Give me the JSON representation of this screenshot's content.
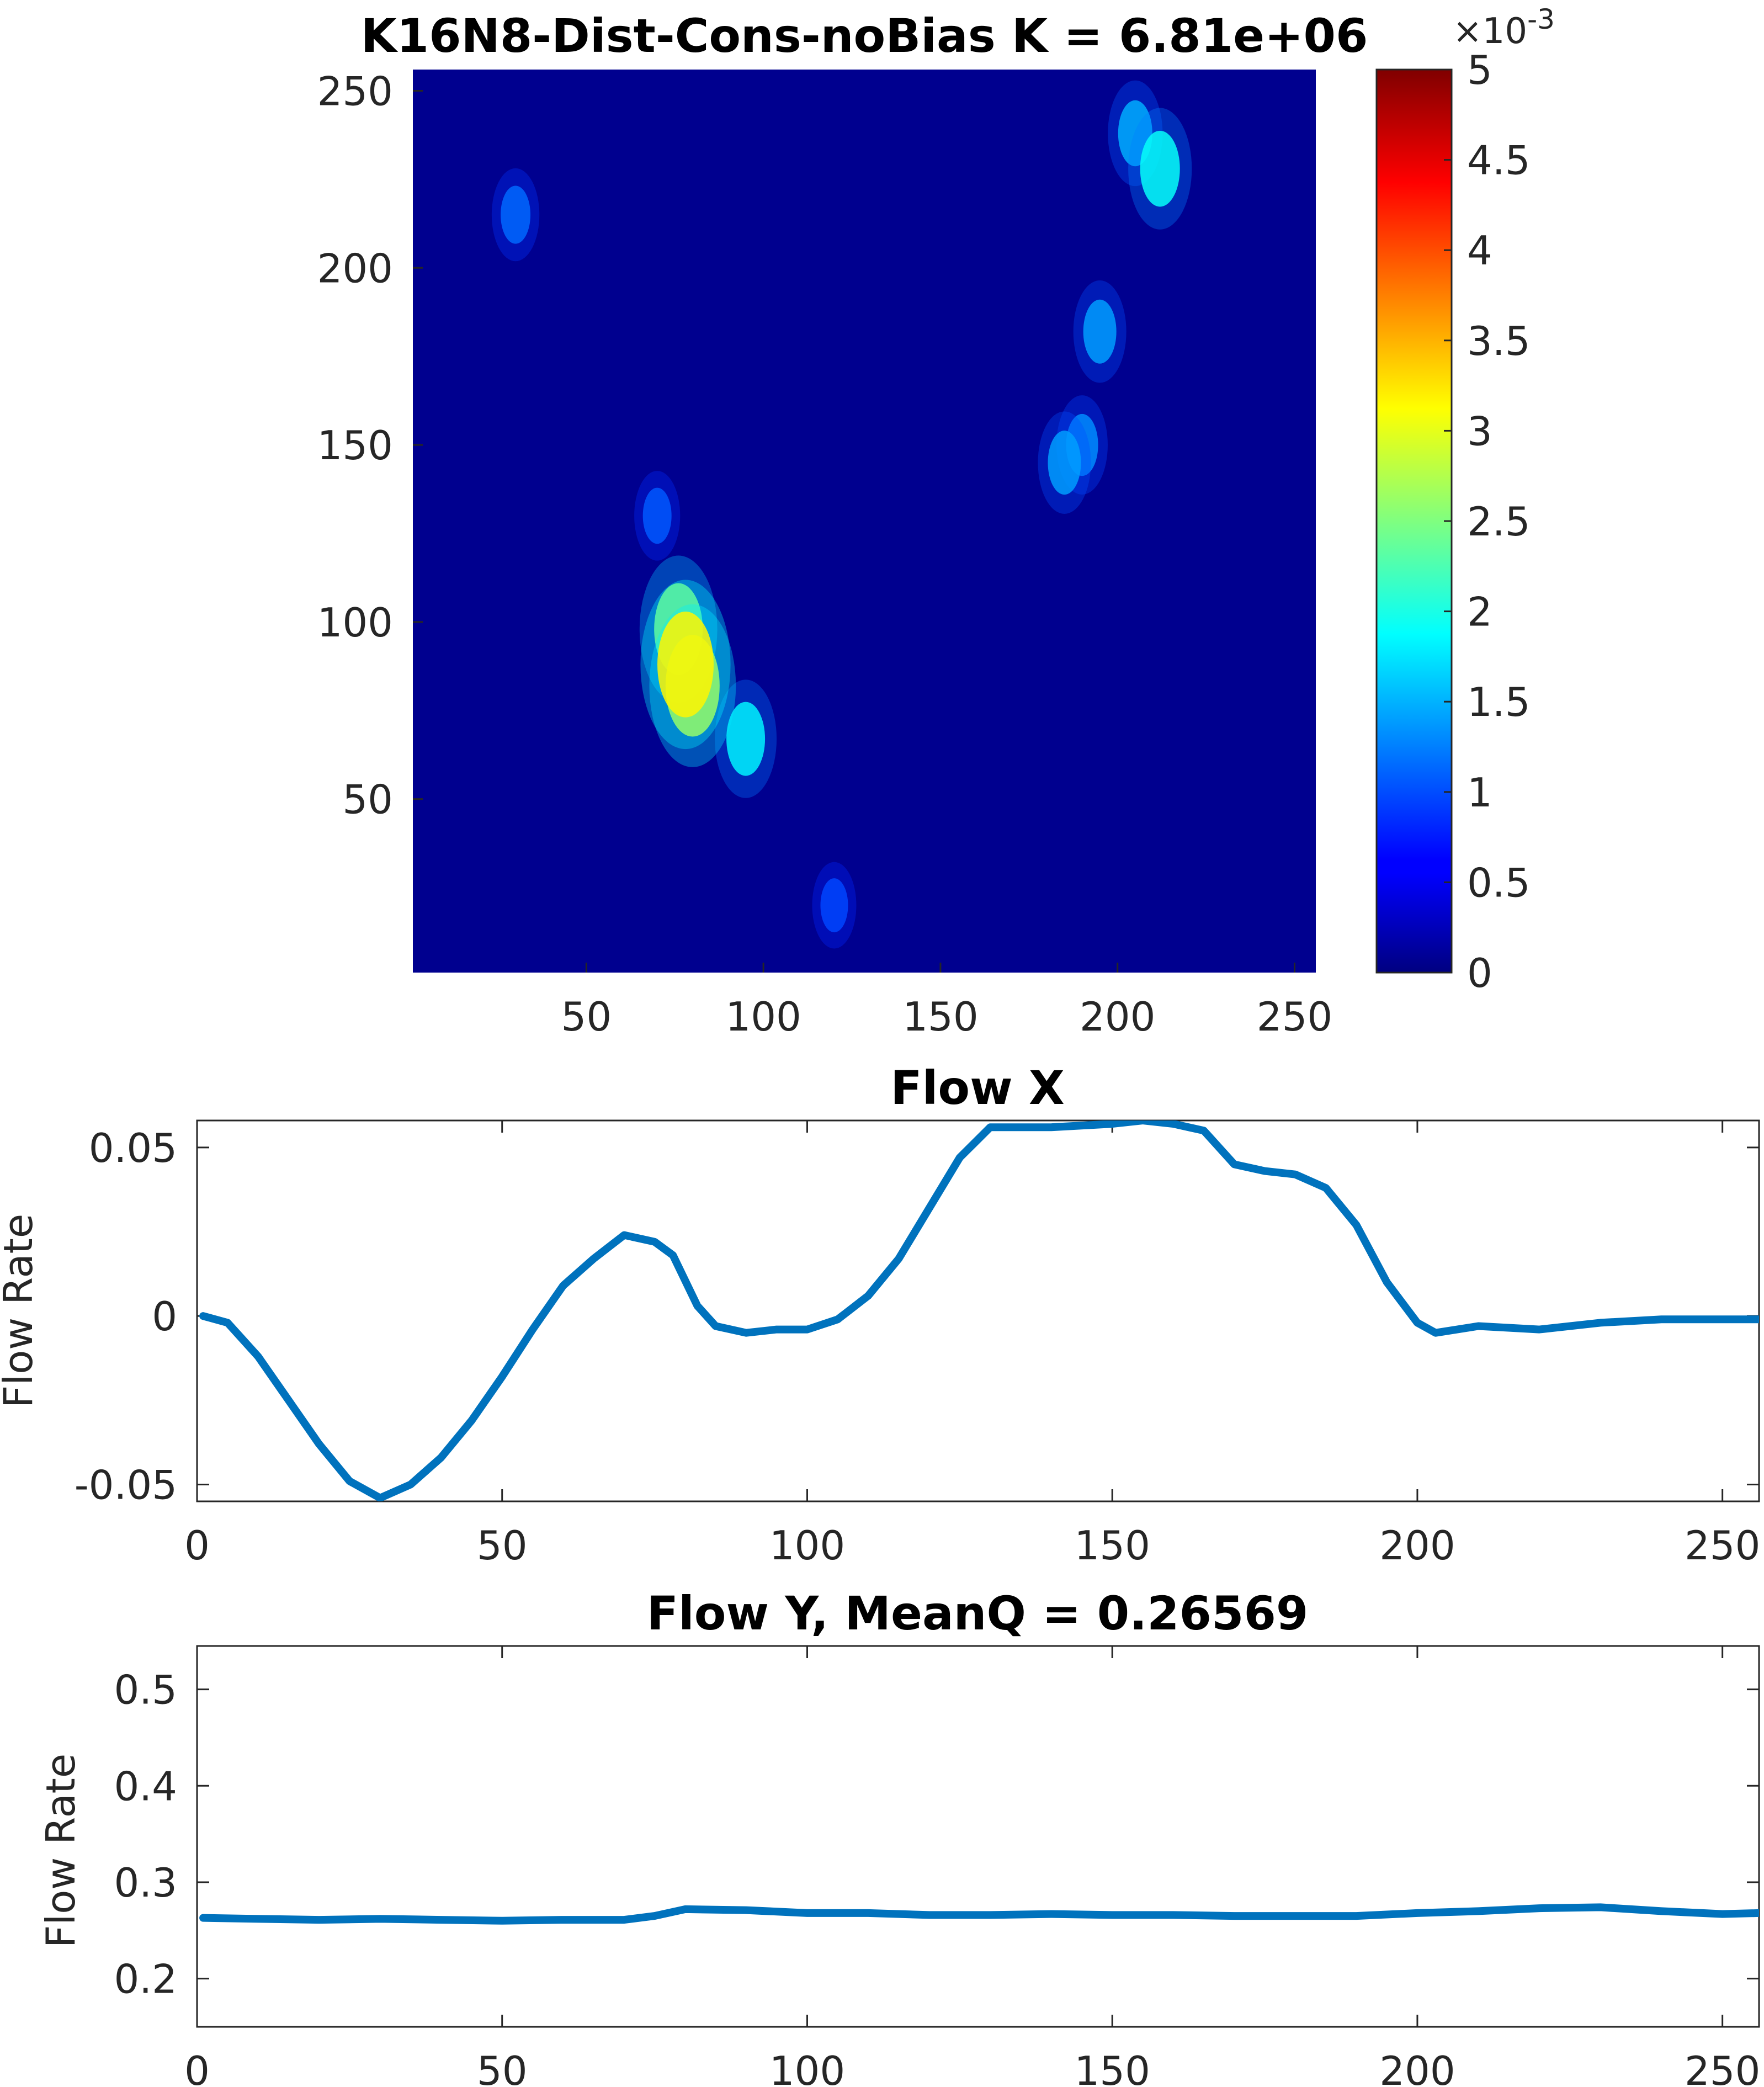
{
  "chart_data": [
    {
      "type": "heatmap",
      "title": "K16N8-Dist-Cons-noBias K = 6.81e+06",
      "xlabel": "",
      "ylabel": "",
      "xlim": [
        1,
        256
      ],
      "ylim": [
        1,
        256
      ],
      "x_ticks": [
        "50",
        "100",
        "150",
        "200",
        "250"
      ],
      "y_ticks": [
        "250",
        "200",
        "150",
        "100",
        "50"
      ],
      "colormap": "jet",
      "colorbar": {
        "exponent_label": "×10",
        "exponent": "-3",
        "range": [
          0,
          5
        ],
        "ticks": [
          "5",
          "4.5",
          "4",
          "3.5",
          "3",
          "2.5",
          "2",
          "1.5",
          "1",
          "0.5",
          "0"
        ]
      },
      "background_value": 0.0,
      "hotspots": [
        {
          "x": 78,
          "y": 88,
          "value": 3.1
        },
        {
          "x": 80,
          "y": 82,
          "value": 2.9
        },
        {
          "x": 76,
          "y": 98,
          "value": 2.4
        },
        {
          "x": 95,
          "y": 67,
          "value": 1.5
        },
        {
          "x": 212,
          "y": 228,
          "value": 1.6
        },
        {
          "x": 205,
          "y": 238,
          "value": 1.1
        },
        {
          "x": 195,
          "y": 182,
          "value": 1.0
        },
        {
          "x": 185,
          "y": 145,
          "value": 1.0
        },
        {
          "x": 190,
          "y": 150,
          "value": 0.9
        },
        {
          "x": 30,
          "y": 215,
          "value": 0.7
        },
        {
          "x": 70,
          "y": 130,
          "value": 0.6
        },
        {
          "x": 120,
          "y": 20,
          "value": 0.5
        }
      ]
    },
    {
      "type": "line",
      "title": "Flow X",
      "xlabel": "",
      "ylabel": "Flow Rate",
      "xlim": [
        0,
        256
      ],
      "ylim": [
        -0.055,
        0.058
      ],
      "x_ticks": [
        "0",
        "50",
        "100",
        "150",
        "200",
        "250"
      ],
      "y_ticks": [
        "0.05",
        "0",
        "-0.05"
      ],
      "color": "#0072BD",
      "x": [
        1,
        5,
        10,
        15,
        20,
        25,
        30,
        35,
        40,
        45,
        50,
        55,
        60,
        65,
        70,
        75,
        78,
        82,
        85,
        90,
        95,
        100,
        105,
        110,
        115,
        120,
        125,
        130,
        140,
        150,
        155,
        160,
        165,
        170,
        175,
        180,
        185,
        190,
        195,
        200,
        203,
        210,
        220,
        230,
        240,
        250,
        256
      ],
      "y": [
        0.0,
        -0.002,
        -0.012,
        -0.025,
        -0.038,
        -0.049,
        -0.054,
        -0.05,
        -0.042,
        -0.031,
        -0.018,
        -0.004,
        0.009,
        0.017,
        0.024,
        0.022,
        0.018,
        0.003,
        -0.003,
        -0.005,
        -0.004,
        -0.004,
        -0.001,
        0.006,
        0.017,
        0.032,
        0.047,
        0.056,
        0.056,
        0.057,
        0.058,
        0.057,
        0.055,
        0.045,
        0.043,
        0.042,
        0.038,
        0.027,
        0.01,
        -0.002,
        -0.005,
        -0.003,
        -0.004,
        -0.002,
        -0.001,
        -0.001,
        -0.001
      ]
    },
    {
      "type": "line",
      "title": "Flow Y, MeanQ = 0.26569",
      "xlabel": "",
      "ylabel": "Flow Rate",
      "xlim": [
        0,
        256
      ],
      "ylim": [
        0.15,
        0.545
      ],
      "x_ticks": [
        "0",
        "50",
        "100",
        "150",
        "200",
        "250"
      ],
      "y_ticks": [
        "0.5",
        "0.4",
        "0.3",
        "0.2"
      ],
      "color": "#0072BD",
      "x": [
        1,
        10,
        20,
        30,
        40,
        50,
        60,
        70,
        75,
        80,
        90,
        100,
        110,
        120,
        130,
        140,
        150,
        160,
        170,
        180,
        190,
        200,
        210,
        220,
        230,
        240,
        250,
        256
      ],
      "y": [
        0.263,
        0.262,
        0.261,
        0.262,
        0.261,
        0.26,
        0.261,
        0.261,
        0.265,
        0.272,
        0.271,
        0.268,
        0.268,
        0.266,
        0.266,
        0.267,
        0.266,
        0.266,
        0.265,
        0.265,
        0.265,
        0.268,
        0.27,
        0.273,
        0.274,
        0.27,
        0.267,
        0.268
      ]
    }
  ]
}
